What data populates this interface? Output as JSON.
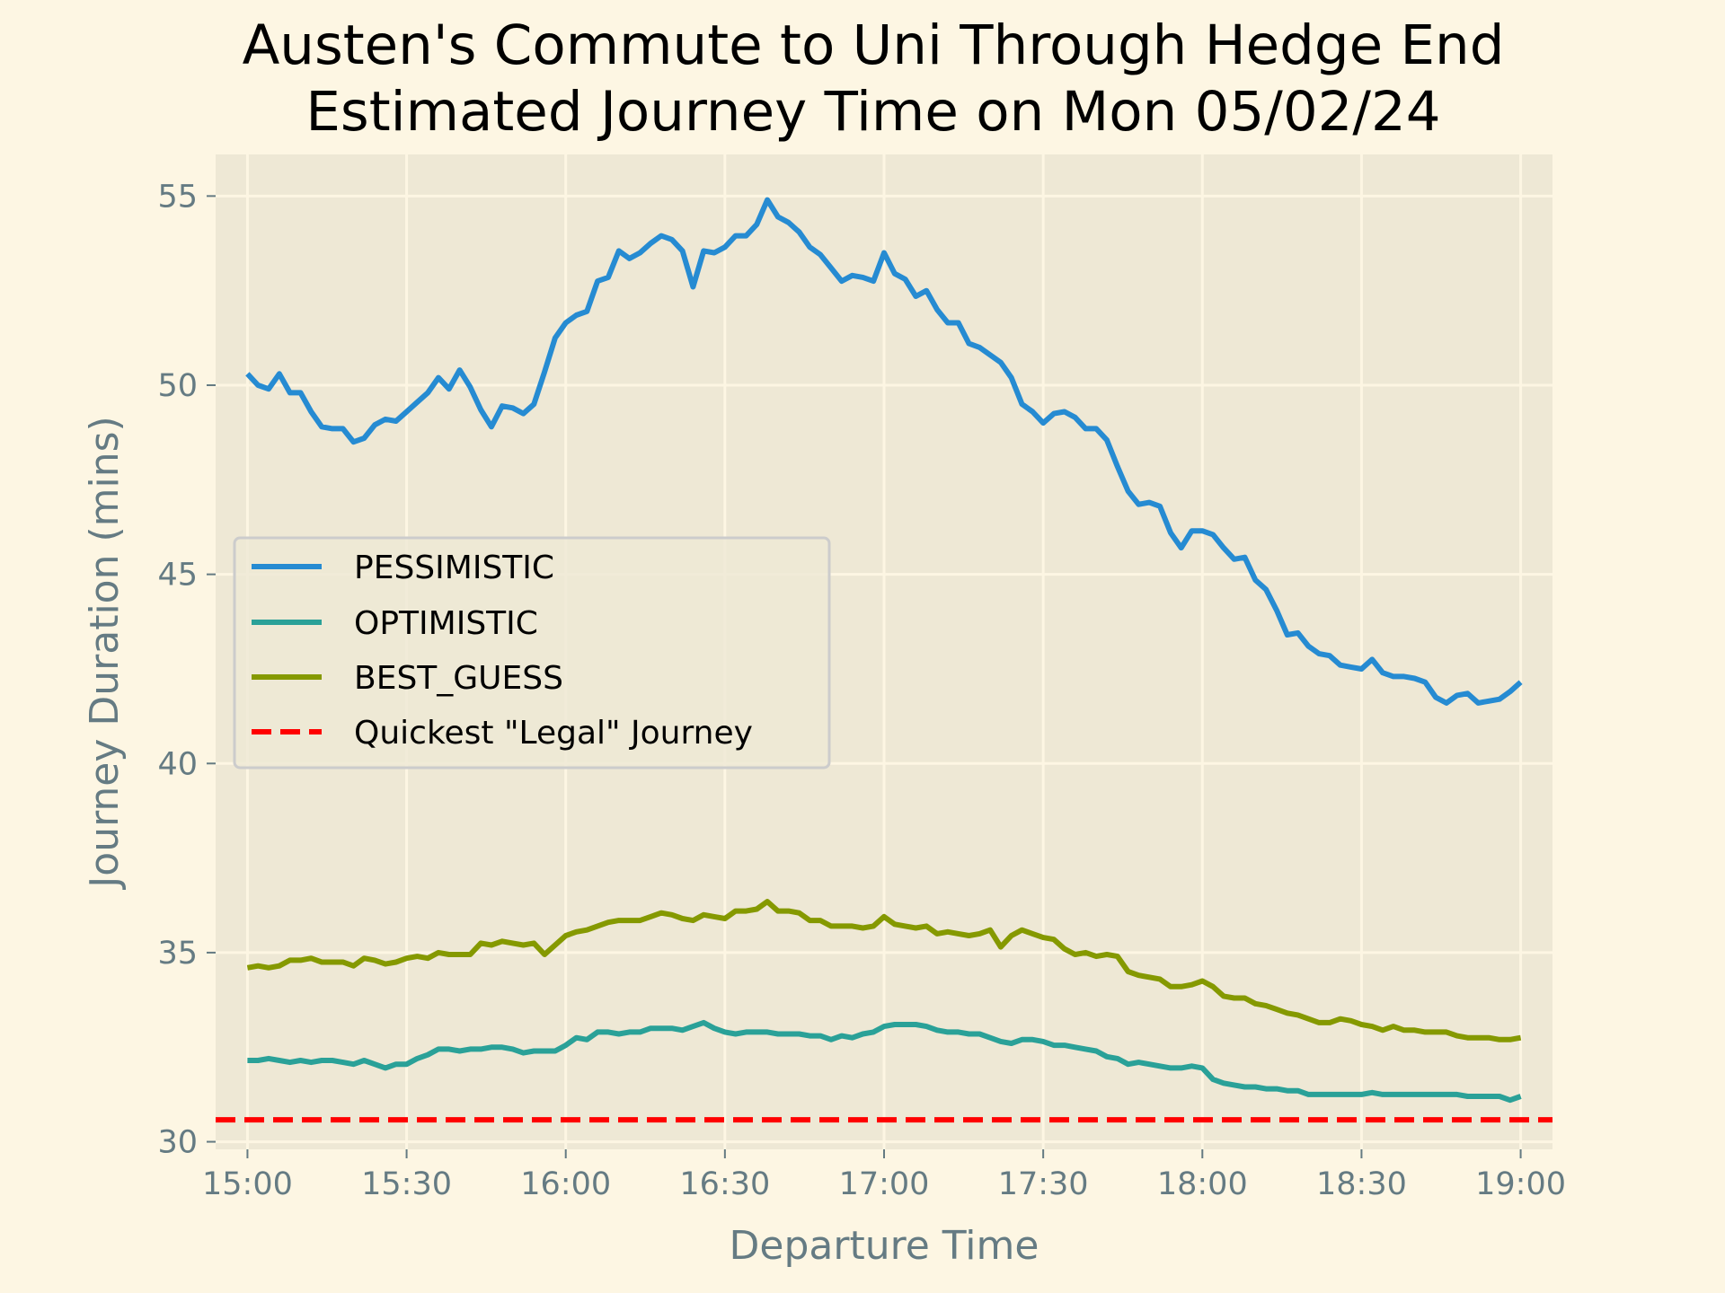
{
  "chart_data": {
    "type": "line",
    "title_line1": "Austen's Commute to Uni Through Hedge End",
    "title_line2": "Estimated Journey Time on Mon 05/02/24",
    "xlabel": "Departure Time",
    "ylabel": "Journey Duration (mins)",
    "x_ticks": [
      "15:00",
      "15:30",
      "16:00",
      "16:30",
      "17:00",
      "17:30",
      "18:00",
      "18:30",
      "19:00"
    ],
    "y_ticks": [
      30,
      35,
      40,
      45,
      50,
      55
    ],
    "xlim": [
      "14:54",
      "19:06"
    ],
    "ylim": [
      29.8,
      56.1
    ],
    "grid": true,
    "legend_position": "center-left",
    "x_start": "15:00",
    "x_step_minutes": 2,
    "series": [
      {
        "name": "PESSIMISTIC",
        "color": "#268bd2",
        "style": "solid",
        "values": [
          50.3,
          50.0,
          49.9,
          50.3,
          49.8,
          49.8,
          49.3,
          48.9,
          48.85,
          48.85,
          48.5,
          48.6,
          48.95,
          49.1,
          49.05,
          49.3,
          49.55,
          49.8,
          50.2,
          49.9,
          50.4,
          49.95,
          49.35,
          48.9,
          49.45,
          49.4,
          49.25,
          49.5,
          50.35,
          51.25,
          51.65,
          51.85,
          51.95,
          52.75,
          52.85,
          53.55,
          53.35,
          53.5,
          53.75,
          53.95,
          53.85,
          53.55,
          52.6,
          53.55,
          53.5,
          53.65,
          53.95,
          53.95,
          54.25,
          54.9,
          54.45,
          54.3,
          54.05,
          53.65,
          53.45,
          53.1,
          52.75,
          52.9,
          52.85,
          52.75,
          53.5,
          52.95,
          52.8,
          52.35,
          52.5,
          52.0,
          51.65,
          51.65,
          51.1,
          51.0,
          50.8,
          50.6,
          50.2,
          49.5,
          49.3,
          49.0,
          49.25,
          49.3,
          49.15,
          48.85,
          48.85,
          48.55,
          47.85,
          47.2,
          46.85,
          46.9,
          46.8,
          46.1,
          45.7,
          46.15,
          46.15,
          46.05,
          45.7,
          45.4,
          45.45,
          44.85,
          44.6,
          44.05,
          43.4,
          43.45,
          43.1,
          42.9,
          42.85,
          42.6,
          42.55,
          42.5,
          42.75,
          42.4,
          42.3,
          42.3,
          42.25,
          42.15,
          41.75,
          41.6,
          41.8,
          41.85,
          41.6,
          41.65,
          41.7,
          41.9,
          42.15
        ]
      },
      {
        "name": "OPTIMISTIC",
        "color": "#2aa198",
        "style": "solid",
        "values": [
          32.15,
          32.15,
          32.2,
          32.15,
          32.1,
          32.15,
          32.1,
          32.15,
          32.15,
          32.1,
          32.05,
          32.15,
          32.05,
          31.95,
          32.05,
          32.05,
          32.2,
          32.3,
          32.45,
          32.45,
          32.4,
          32.45,
          32.45,
          32.5,
          32.5,
          32.45,
          32.35,
          32.4,
          32.4,
          32.4,
          32.55,
          32.75,
          32.7,
          32.9,
          32.9,
          32.85,
          32.9,
          32.9,
          33.0,
          33.0,
          33.0,
          32.95,
          33.05,
          33.15,
          33.0,
          32.9,
          32.85,
          32.9,
          32.9,
          32.9,
          32.85,
          32.85,
          32.85,
          32.8,
          32.8,
          32.7,
          32.8,
          32.75,
          32.85,
          32.9,
          33.05,
          33.1,
          33.1,
          33.1,
          33.05,
          32.95,
          32.9,
          32.9,
          32.85,
          32.85,
          32.75,
          32.65,
          32.6,
          32.7,
          32.7,
          32.65,
          32.55,
          32.55,
          32.5,
          32.45,
          32.4,
          32.25,
          32.2,
          32.05,
          32.1,
          32.05,
          32.0,
          31.95,
          31.95,
          32.0,
          31.95,
          31.65,
          31.55,
          31.5,
          31.45,
          31.45,
          31.4,
          31.4,
          31.35,
          31.35,
          31.25,
          31.25,
          31.25,
          31.25,
          31.25,
          31.25,
          31.3,
          31.25,
          31.25,
          31.25,
          31.25,
          31.25,
          31.25,
          31.25,
          31.25,
          31.2,
          31.2,
          31.2,
          31.2,
          31.1,
          31.2
        ]
      },
      {
        "name": "BEST_GUESS",
        "color": "#859900",
        "style": "solid",
        "values": [
          34.6,
          34.65,
          34.6,
          34.65,
          34.8,
          34.8,
          34.85,
          34.75,
          34.75,
          34.75,
          34.65,
          34.85,
          34.8,
          34.7,
          34.75,
          34.85,
          34.9,
          34.85,
          35.0,
          34.95,
          34.95,
          34.95,
          35.25,
          35.2,
          35.3,
          35.25,
          35.2,
          35.25,
          34.95,
          35.2,
          35.45,
          35.55,
          35.6,
          35.7,
          35.8,
          35.85,
          35.85,
          35.85,
          35.95,
          36.05,
          36.0,
          35.9,
          35.85,
          36.0,
          35.95,
          35.9,
          36.1,
          36.1,
          36.15,
          36.35,
          36.1,
          36.1,
          36.05,
          35.85,
          35.85,
          35.7,
          35.7,
          35.7,
          35.65,
          35.7,
          35.95,
          35.75,
          35.7,
          35.65,
          35.7,
          35.5,
          35.55,
          35.5,
          35.45,
          35.5,
          35.6,
          35.15,
          35.45,
          35.6,
          35.5,
          35.4,
          35.35,
          35.1,
          34.95,
          35.0,
          34.9,
          34.95,
          34.9,
          34.5,
          34.4,
          34.35,
          34.3,
          34.1,
          34.1,
          34.15,
          34.25,
          34.1,
          33.85,
          33.8,
          33.8,
          33.65,
          33.6,
          33.5,
          33.4,
          33.35,
          33.25,
          33.15,
          33.15,
          33.25,
          33.2,
          33.1,
          33.05,
          32.95,
          33.05,
          32.95,
          32.95,
          32.9,
          32.9,
          32.9,
          32.8,
          32.75,
          32.75,
          32.75,
          32.7,
          32.7,
          32.75
        ]
      },
      {
        "name": "Quickest \"Legal\" Journey",
        "color": "#ff0000",
        "style": "dashed",
        "values": [
          30.58,
          30.58
        ]
      }
    ]
  }
}
